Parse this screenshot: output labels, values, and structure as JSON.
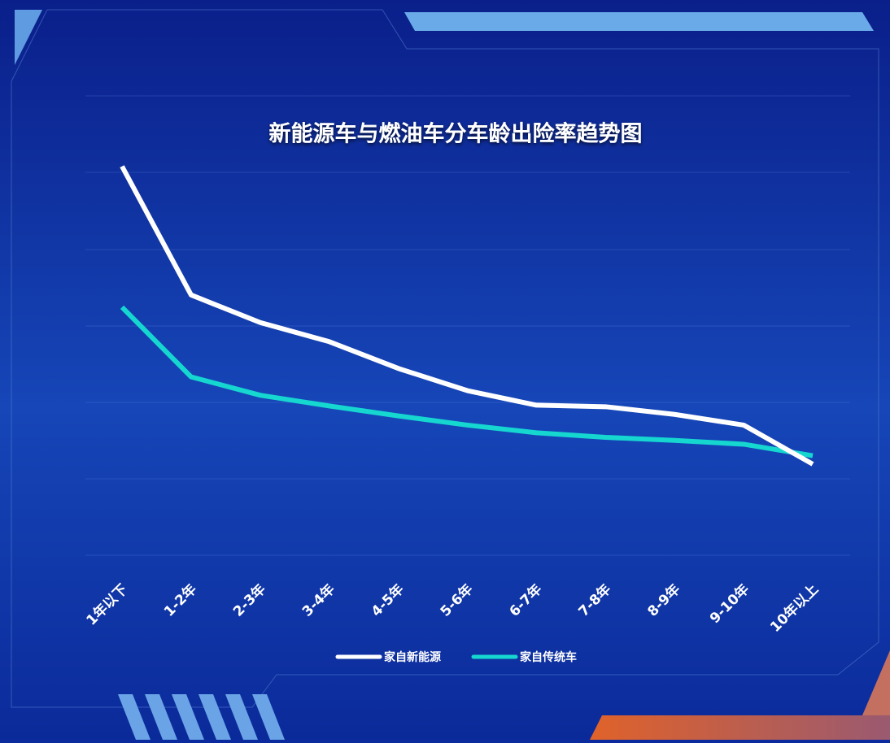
{
  "chart_data": {
    "type": "line",
    "title": "新能源车与燃油车分车龄出险率趋势图",
    "categories": [
      "1年以下",
      "1-2年",
      "2-3年",
      "3-4年",
      "4-5年",
      "5-6年",
      "6-7年",
      "7-8年",
      "8-9年",
      "9-10年",
      "10年以上"
    ],
    "series": [
      {
        "name": "家自新能源",
        "color": "#ffffff",
        "values": [
          5.08,
          3.4,
          3.04,
          2.79,
          2.44,
          2.15,
          1.96,
          1.94,
          1.84,
          1.7,
          1.19
        ]
      },
      {
        "name": "家自传统车",
        "color": "#16d6d0",
        "values": [
          3.24,
          2.33,
          2.09,
          1.95,
          1.82,
          1.7,
          1.6,
          1.54,
          1.5,
          1.45,
          1.3
        ]
      }
    ],
    "ylim": [
      0,
      6
    ]
  }
}
